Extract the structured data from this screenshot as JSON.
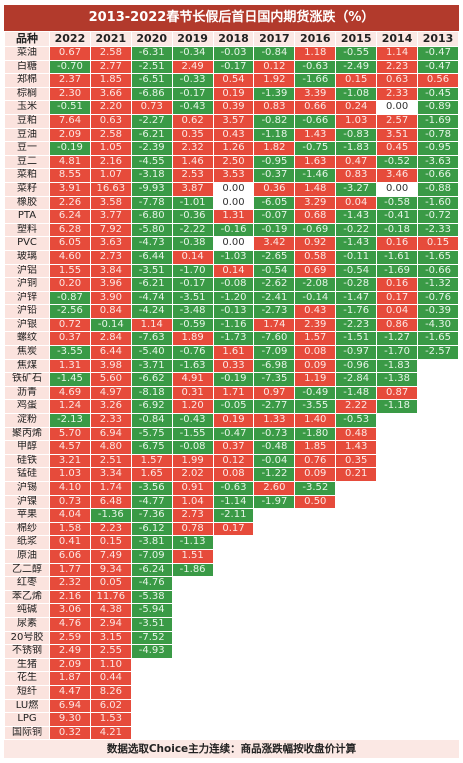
{
  "title": "2013-2022春节长假后首日国内期货涨跌（%）",
  "header": [
    "品种",
    "2022",
    "2021",
    "2020",
    "2019",
    "2018",
    "2017",
    "2016",
    "2015",
    "2014",
    "2013"
  ],
  "rows": [
    {
      "name": "菜油",
      "values": [
        "0.67",
        "2.58",
        "-6.31",
        "-0.34",
        "-0.03",
        "-0.84",
        "1.18",
        "-0.55",
        "1.14",
        "-0.47"
      ]
    },
    {
      "name": "白糖",
      "values": [
        "-0.70",
        "2.77",
        "-2.51",
        "2.49",
        "-0.17",
        "0.12",
        "-0.63",
        "-2.49",
        "2.23",
        "-0.47"
      ]
    },
    {
      "name": "郑棉",
      "values": [
        "2.37",
        "1.85",
        "-6.51",
        "-0.33",
        "0.54",
        "1.92",
        "-1.66",
        "0.15",
        "0.63",
        "0.56"
      ]
    },
    {
      "name": "棕榈",
      "values": [
        "2.30",
        "3.66",
        "-6.86",
        "-0.17",
        "0.19",
        "-1.39",
        "3.39",
        "-1.08",
        "2.33",
        "-0.45"
      ]
    },
    {
      "name": "玉米",
      "values": [
        "-0.51",
        "2.20",
        "0.73",
        "-0.43",
        "0.39",
        "0.83",
        "0.66",
        "0.24",
        "0.00",
        "-0.89"
      ]
    },
    {
      "name": "豆粕",
      "values": [
        "7.64",
        "0.63",
        "-2.27",
        "0.62",
        "3.57",
        "-0.82",
        "-0.66",
        "1.03",
        "2.57",
        "-1.69"
      ]
    },
    {
      "name": "豆油",
      "values": [
        "2.09",
        "2.58",
        "-6.21",
        "0.35",
        "0.43",
        "-1.18",
        "1.43",
        "-0.83",
        "3.51",
        "-0.78"
      ]
    },
    {
      "name": "豆一",
      "values": [
        "-0.19",
        "1.05",
        "-2.39",
        "2.32",
        "1.26",
        "1.82",
        "-0.75",
        "-1.83",
        "0.45",
        "-0.95"
      ]
    },
    {
      "name": "豆二",
      "values": [
        "4.81",
        "2.16",
        "-4.55",
        "1.46",
        "2.50",
        "-0.95",
        "1.63",
        "0.47",
        "-0.52",
        "-3.63"
      ]
    },
    {
      "name": "菜粕",
      "values": [
        "8.55",
        "1.07",
        "-3.18",
        "2.53",
        "3.53",
        "-0.37",
        "-1.46",
        "0.83",
        "3.46",
        "-0.66"
      ]
    },
    {
      "name": "菜籽",
      "values": [
        "3.91",
        "16.63",
        "-9.93",
        "3.87",
        "0.00",
        "0.36",
        "1.48",
        "-3.27",
        "0.00",
        "-0.88"
      ]
    },
    {
      "name": "橡胶",
      "values": [
        "2.26",
        "3.58",
        "-7.78",
        "-1.01",
        "0.00",
        "-6.05",
        "3.29",
        "0.04",
        "-0.58",
        "-1.60"
      ]
    },
    {
      "name": "PTA",
      "values": [
        "6.24",
        "3.77",
        "-6.80",
        "-0.36",
        "1.31",
        "-0.07",
        "0.68",
        "-1.43",
        "-0.41",
        "-0.72"
      ]
    },
    {
      "name": "塑料",
      "values": [
        "6.28",
        "7.92",
        "-5.80",
        "-2.22",
        "-0.16",
        "-0.19",
        "-0.69",
        "-0.22",
        "-0.18",
        "-2.33"
      ]
    },
    {
      "name": "PVC",
      "values": [
        "6.05",
        "3.63",
        "-4.73",
        "-0.38",
        "0.00",
        "3.42",
        "0.92",
        "-1.43",
        "0.16",
        "0.15"
      ]
    },
    {
      "name": "玻璃",
      "values": [
        "4.60",
        "2.73",
        "-6.44",
        "0.14",
        "-1.03",
        "-2.65",
        "0.58",
        "-0.11",
        "-1.61",
        "-1.65"
      ]
    },
    {
      "name": "沪铝",
      "values": [
        "1.55",
        "3.84",
        "-3.51",
        "-1.70",
        "0.14",
        "-0.54",
        "0.69",
        "-0.54",
        "-1.69",
        "-0.66"
      ]
    },
    {
      "name": "沪铜",
      "values": [
        "0.20",
        "3.96",
        "-6.21",
        "-0.17",
        "-0.08",
        "-2.62",
        "-2.08",
        "-0.28",
        "0.16",
        "-1.32"
      ]
    },
    {
      "name": "沪锌",
      "values": [
        "-0.87",
        "3.90",
        "-4.74",
        "-3.51",
        "-1.20",
        "-2.41",
        "-0.14",
        "-1.47",
        "0.17",
        "-0.76"
      ]
    },
    {
      "name": "沪铅",
      "values": [
        "-2.56",
        "0.84",
        "-4.24",
        "-3.48",
        "-0.13",
        "-2.73",
        "0.43",
        "-1.76",
        "0.04",
        "-0.39"
      ]
    },
    {
      "name": "沪银",
      "values": [
        "0.72",
        "-0.14",
        "1.14",
        "-0.59",
        "-1.16",
        "1.74",
        "2.39",
        "-2.23",
        "0.86",
        "-4.30"
      ]
    },
    {
      "name": "螺纹",
      "values": [
        "0.37",
        "2.84",
        "-7.63",
        "1.89",
        "-1.73",
        "-7.60",
        "1.57",
        "-1.51",
        "-1.27",
        "-1.65"
      ]
    },
    {
      "name": "焦炭",
      "values": [
        "-3.55",
        "6.44",
        "-5.40",
        "-0.76",
        "1.61",
        "-7.09",
        "0.08",
        "-0.97",
        "-1.70",
        "-2.57"
      ]
    },
    {
      "name": "焦煤",
      "values": [
        "1.31",
        "3.98",
        "-3.71",
        "-1.63",
        "0.33",
        "-6.98",
        "0.09",
        "-0.96",
        "-1.83"
      ]
    },
    {
      "name": "铁矿石",
      "values": [
        "-1.45",
        "5.60",
        "-6.62",
        "4.91",
        "-0.19",
        "-7.35",
        "1.19",
        "-2.84",
        "-1.38"
      ]
    },
    {
      "name": "沥青",
      "values": [
        "4.69",
        "4.97",
        "-8.18",
        "0.31",
        "1.71",
        "0.97",
        "-0.49",
        "-1.48",
        "0.87"
      ]
    },
    {
      "name": "鸡蛋",
      "values": [
        "1.24",
        "3.26",
        "-6.92",
        "1.20",
        "-0.05",
        "-2.77",
        "-3.55",
        "2.22",
        "-1.18"
      ]
    },
    {
      "name": "淀粉",
      "values": [
        "-2.13",
        "2.33",
        "-0.84",
        "-0.43",
        "0.19",
        "1.33",
        "1.40",
        "-0.53"
      ]
    },
    {
      "name": "聚丙烯",
      "values": [
        "5.70",
        "6.94",
        "-5.75",
        "-1.55",
        "-0.47",
        "-0.73",
        "-1.80",
        "0.48"
      ]
    },
    {
      "name": "甲醇",
      "values": [
        "4.57",
        "4.80",
        "-6.75",
        "-0.08",
        "0.37",
        "-0.48",
        "1.85",
        "1.43"
      ]
    },
    {
      "name": "硅铁",
      "values": [
        "3.21",
        "2.51",
        "1.57",
        "1.99",
        "0.12",
        "-0.04",
        "0.76",
        "0.35"
      ]
    },
    {
      "name": "锰硅",
      "values": [
        "1.03",
        "3.34",
        "1.65",
        "2.02",
        "0.08",
        "-1.22",
        "0.09",
        "0.21"
      ]
    },
    {
      "name": "沪锡",
      "values": [
        "4.10",
        "1.74",
        "-3.56",
        "0.91",
        "-0.63",
        "2.60",
        "-3.52"
      ]
    },
    {
      "name": "沪镍",
      "values": [
        "0.73",
        "6.48",
        "-4.77",
        "1.04",
        "-1.14",
        "-1.97",
        "0.50"
      ]
    },
    {
      "name": "苹果",
      "values": [
        "4.04",
        "-1.36",
        "-7.36",
        "2.73",
        "-2.11"
      ]
    },
    {
      "name": "棉纱",
      "values": [
        "1.58",
        "2.23",
        "-6.12",
        "0.78",
        "0.17"
      ]
    },
    {
      "name": "纸浆",
      "values": [
        "0.41",
        "0.15",
        "-3.81",
        "-1.13"
      ]
    },
    {
      "name": "原油",
      "values": [
        "6.06",
        "7.49",
        "-7.09",
        "1.51"
      ]
    },
    {
      "name": "乙二醇",
      "values": [
        "1.77",
        "9.34",
        "-6.24",
        "-1.86"
      ]
    },
    {
      "name": "红枣",
      "values": [
        "2.32",
        "0.05",
        "-4.76"
      ]
    },
    {
      "name": "苯乙烯",
      "values": [
        "2.16",
        "11.76",
        "-5.38"
      ]
    },
    {
      "name": "纯碱",
      "values": [
        "3.06",
        "4.38",
        "-5.94"
      ]
    },
    {
      "name": "尿素",
      "values": [
        "4.76",
        "2.94",
        "-3.51"
      ]
    },
    {
      "name": "20号胶",
      "values": [
        "2.59",
        "3.15",
        "-7.52"
      ]
    },
    {
      "name": "不锈钢",
      "values": [
        "2.49",
        "2.55",
        "-4.93"
      ]
    },
    {
      "name": "生猪",
      "values": [
        "2.09",
        "1.10"
      ]
    },
    {
      "name": "花生",
      "values": [
        "1.87",
        "0.44"
      ]
    },
    {
      "name": "短纤",
      "values": [
        "4.47",
        "8.26"
      ]
    },
    {
      "name": "LU燃",
      "values": [
        "6.94",
        "6.02"
      ]
    },
    {
      "name": "LPG",
      "values": [
        "9.30",
        "1.53"
      ]
    },
    {
      "name": "国际铜",
      "values": [
        "0.32",
        "4.21"
      ]
    }
  ],
  "footer": "数据选取Choice主力连续：商品涨跌幅按收盘价计算"
}
